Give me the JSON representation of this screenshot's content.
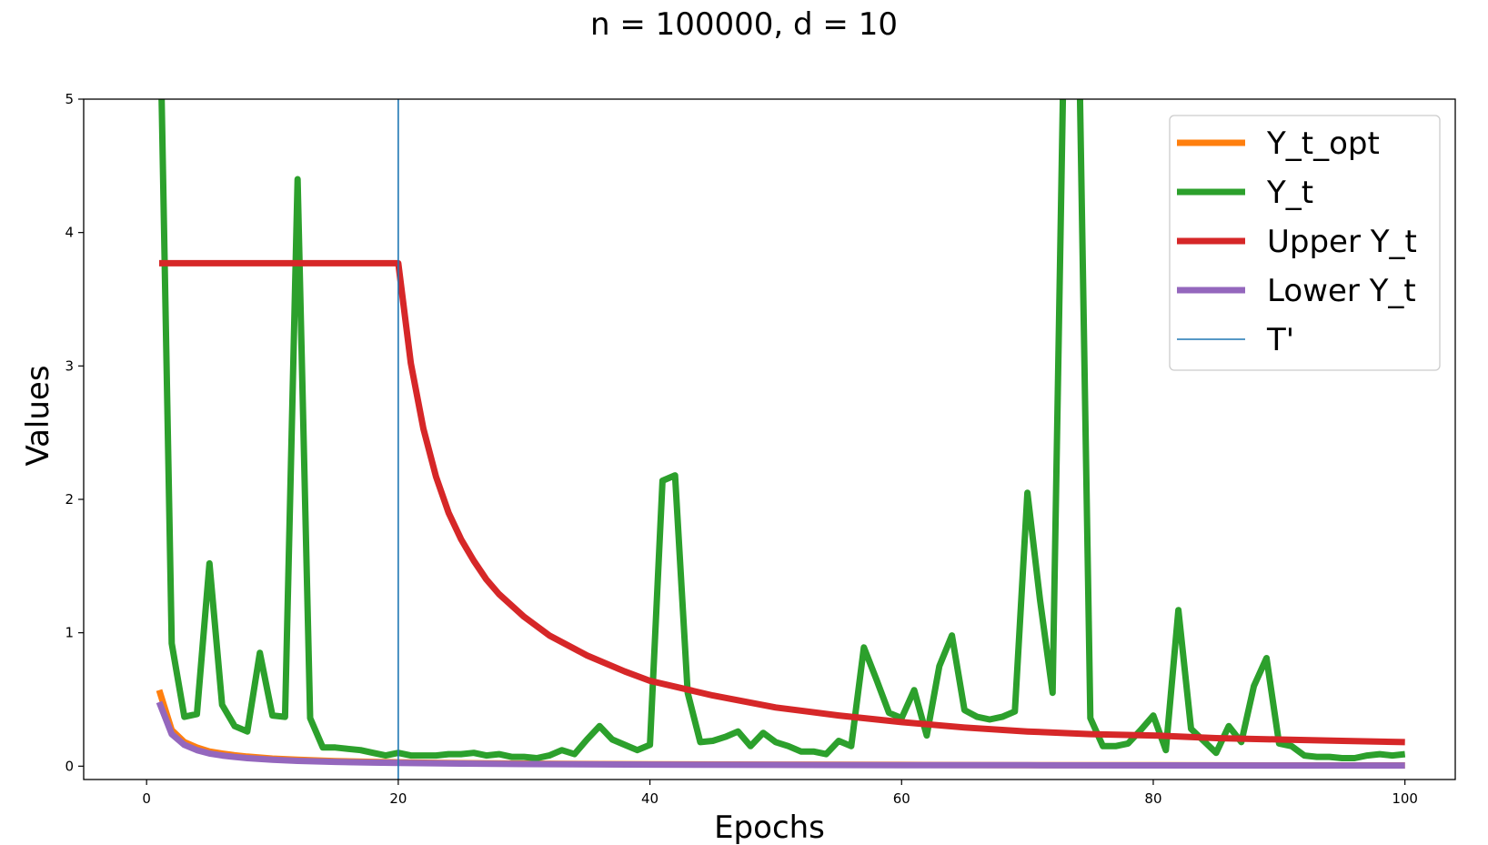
{
  "chart_data": {
    "type": "line",
    "title": "n = 100000, d = 10",
    "xlabel": "Epochs",
    "ylabel": "Values",
    "xlim": [
      -5,
      104
    ],
    "ylim": [
      -0.1,
      5
    ],
    "xticks": [
      0,
      20,
      40,
      60,
      80,
      100
    ],
    "yticks": [
      0,
      1,
      2,
      3,
      4,
      5
    ],
    "grid": false,
    "legend_position": "top-right",
    "vline": {
      "name": "T'",
      "x": 20,
      "color": "#1f77b4"
    },
    "series": [
      {
        "name": "Y_t_opt",
        "color": "#ff7f0e",
        "x": [
          1,
          2,
          3,
          4,
          5,
          6,
          7,
          8,
          9,
          10,
          12,
          15,
          18,
          20,
          25,
          30,
          40,
          50,
          60,
          70,
          80,
          90,
          100
        ],
        "y": [
          0.57,
          0.27,
          0.18,
          0.14,
          0.11,
          0.095,
          0.082,
          0.072,
          0.064,
          0.057,
          0.048,
          0.038,
          0.032,
          0.029,
          0.023,
          0.019,
          0.014,
          0.012,
          0.01,
          0.008,
          0.007,
          0.006,
          0.006
        ]
      },
      {
        "name": "Y_t",
        "color": "#2ca02c",
        "x": [
          1,
          2,
          3,
          4,
          5,
          6,
          7,
          8,
          9,
          10,
          11,
          12,
          13,
          14,
          15,
          16,
          17,
          18,
          19,
          20,
          21,
          22,
          23,
          24,
          25,
          26,
          27,
          28,
          29,
          30,
          31,
          32,
          33,
          34,
          35,
          36,
          37,
          38,
          39,
          40,
          41,
          42,
          43,
          44,
          45,
          46,
          47,
          48,
          49,
          50,
          51,
          52,
          53,
          54,
          55,
          56,
          57,
          58,
          59,
          60,
          61,
          62,
          63,
          64,
          65,
          66,
          67,
          68,
          69,
          70,
          71,
          72,
          73,
          74,
          75,
          76,
          77,
          78,
          79,
          80,
          81,
          82,
          83,
          84,
          85,
          86,
          87,
          88,
          89,
          90,
          91,
          92,
          93,
          94,
          95,
          96,
          97,
          98,
          99,
          100
        ],
        "y": [
          6.0,
          0.92,
          0.37,
          0.39,
          1.52,
          0.46,
          0.3,
          0.26,
          0.85,
          0.38,
          0.37,
          4.4,
          0.36,
          0.14,
          0.14,
          0.13,
          0.12,
          0.1,
          0.08,
          0.1,
          0.08,
          0.08,
          0.08,
          0.09,
          0.09,
          0.1,
          0.08,
          0.09,
          0.07,
          0.07,
          0.06,
          0.08,
          0.12,
          0.09,
          0.2,
          0.3,
          0.2,
          0.16,
          0.12,
          0.16,
          2.14,
          2.18,
          0.55,
          0.18,
          0.19,
          0.22,
          0.26,
          0.15,
          0.25,
          0.18,
          0.15,
          0.11,
          0.11,
          0.09,
          0.19,
          0.15,
          0.89,
          0.65,
          0.4,
          0.36,
          0.57,
          0.23,
          0.75,
          0.98,
          0.42,
          0.37,
          0.35,
          0.37,
          0.41,
          2.05,
          1.25,
          0.55,
          6.0,
          6.0,
          0.36,
          0.15,
          0.15,
          0.17,
          0.27,
          0.38,
          0.12,
          1.17,
          0.28,
          0.19,
          0.1,
          0.3,
          0.18,
          0.6,
          0.81,
          0.17,
          0.15,
          0.08,
          0.07,
          0.07,
          0.06,
          0.06,
          0.08,
          0.09,
          0.08,
          0.09
        ]
      },
      {
        "name": "Upper Y_t",
        "color": "#d62728",
        "formula_knot": 20,
        "plateau": 3.77,
        "x": [
          1,
          5,
          10,
          15,
          20,
          21,
          22,
          23,
          24,
          25,
          26,
          27,
          28,
          30,
          32,
          35,
          38,
          40,
          45,
          50,
          55,
          60,
          65,
          70,
          75,
          80,
          85,
          90,
          95,
          100
        ],
        "y": [
          3.77,
          3.77,
          3.77,
          3.77,
          3.77,
          3.02,
          2.53,
          2.17,
          1.9,
          1.7,
          1.54,
          1.4,
          1.29,
          1.12,
          0.98,
          0.83,
          0.71,
          0.64,
          0.53,
          0.44,
          0.38,
          0.33,
          0.29,
          0.26,
          0.24,
          0.23,
          0.21,
          0.2,
          0.19,
          0.18
        ]
      },
      {
        "name": "Lower Y_t",
        "color": "#9467bd",
        "x": [
          1,
          2,
          3,
          4,
          5,
          6,
          7,
          8,
          9,
          10,
          12,
          15,
          18,
          20,
          25,
          30,
          40,
          50,
          60,
          70,
          80,
          90,
          100
        ],
        "y": [
          0.48,
          0.24,
          0.16,
          0.12,
          0.095,
          0.08,
          0.069,
          0.06,
          0.054,
          0.048,
          0.04,
          0.032,
          0.027,
          0.024,
          0.019,
          0.016,
          0.012,
          0.01,
          0.008,
          0.007,
          0.006,
          0.005,
          0.005
        ]
      }
    ]
  }
}
